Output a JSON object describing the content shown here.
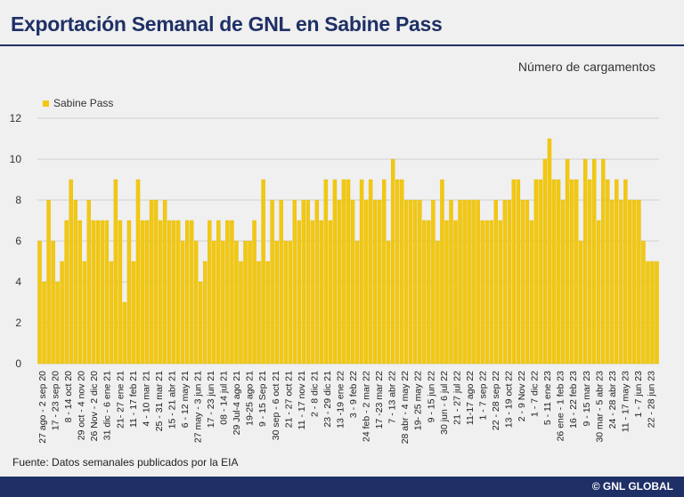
{
  "title": "Exportación Semanal de GNL en Sabine Pass",
  "source": "Fuente: Datos semanales publicados por la EIA",
  "brand": "© GNL GLOBAL",
  "colors": {
    "bar": "#f2c811",
    "bar_edge": "#e0b400",
    "navy": "#1f3066",
    "grid": "#cfcfcf"
  },
  "chart_data": {
    "type": "bar",
    "ylabel": "Número de cargamentos",
    "ylim": [
      0,
      12
    ],
    "yticks": [
      0,
      2,
      4,
      6,
      8,
      10,
      12
    ],
    "grid": true,
    "legend": "top-left",
    "series": [
      {
        "name": "Sabine Pass",
        "values": [
          6,
          4,
          8,
          6,
          4,
          5,
          7,
          9,
          8,
          7,
          5,
          8,
          7,
          7,
          7,
          7,
          5,
          9,
          7,
          3,
          7,
          5,
          9,
          7,
          7,
          8,
          8,
          7,
          8,
          7,
          7,
          7,
          6,
          7,
          7,
          6,
          4,
          5,
          7,
          6,
          7,
          6,
          7,
          7,
          6,
          5,
          6,
          6,
          7,
          5,
          9,
          5,
          8,
          6,
          8,
          6,
          6,
          8,
          7,
          8,
          8,
          7,
          8,
          7,
          9,
          7,
          9,
          8,
          9,
          9,
          8,
          6,
          9,
          8,
          9,
          8,
          8,
          9,
          6,
          10,
          9,
          9,
          8,
          8,
          8,
          8,
          7,
          7,
          8,
          6,
          9,
          7,
          8,
          7,
          8,
          8,
          8,
          8,
          8,
          7,
          7,
          7,
          8,
          7,
          8,
          8,
          9,
          9,
          8,
          8,
          7,
          9,
          9,
          10,
          11,
          9,
          9,
          8,
          10,
          9,
          9,
          6,
          10,
          9,
          10,
          7,
          10,
          9,
          8,
          9,
          8,
          9,
          8,
          8,
          8,
          6,
          5,
          5,
          5
        ]
      }
    ],
    "x_labels": [
      "27 ago - 2 sep 20",
      "17 - 23 sep 20",
      "8 - 14 oct 20",
      "29 oct - 4 nov 20",
      "26 Nov - 2 dic 20",
      "31 dic - 6 ene 21",
      "21- 27 ene 21",
      "11 - 17 feb 21",
      "4 - 10 mar 21",
      "25 - 31 mar 21",
      "15 - 21 abr 21",
      "6 - 12 may 21",
      "27 may - 3 jun 21",
      "17 - 23 jun 21",
      "08 - 14 jul 21",
      "29 Jul-4 ago 21",
      "19-25 ago 21",
      "9 - 15 Sep 21",
      "30 sep - 6 oct 21",
      "21 - 27 oct 21",
      "11 - 17 nov 21",
      "2 - 8 dic 21",
      "23 - 29 dic 21",
      "13 -19 ene 22",
      "3 - 9 feb 22",
      "24 feb - 2 mar 22",
      "17 -23 mar 22",
      "7 - 13 abr 22",
      "28 abr - 4 may 22",
      "19- 25 may 22",
      "9 - 15 jun 22",
      "30 jun - 6 jul 22",
      "21 - 27 jul 22",
      "11-17 ago 22",
      "1 - 7 sep 22",
      "22 - 28 sep 22",
      "13 - 19 oct 22",
      "2 - 9 Nov 22",
      "1 - 7 dic 22",
      "5 - 11 ene 23",
      "26 ene - 1 feb 23",
      "16 - 22 feb 23",
      "9 - 15 mar 23",
      "30 mar - 5 abr 23",
      "24 - 28 abr 23",
      "11 - 17 may 23",
      "1 - 7 jun 23",
      "22 - 28 jun 23"
    ]
  }
}
